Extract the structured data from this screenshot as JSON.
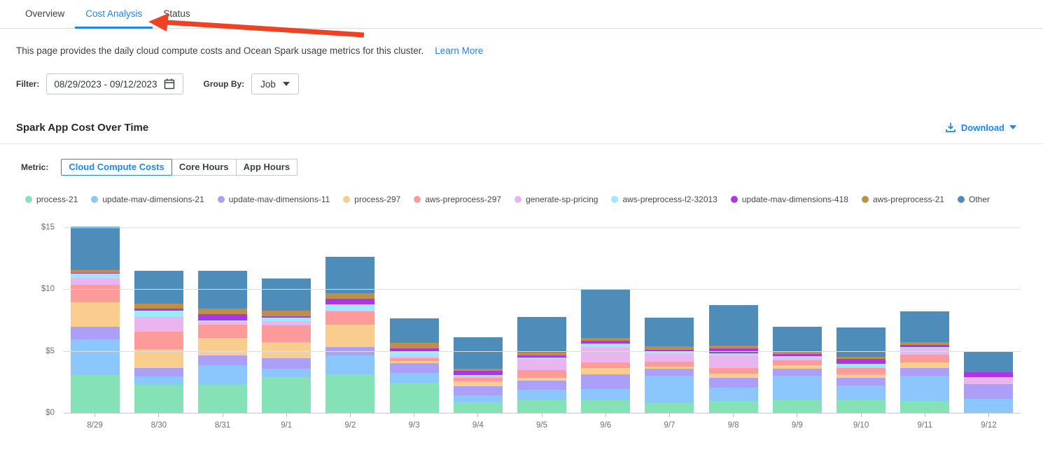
{
  "tabs": {
    "items": [
      {
        "label": "Overview",
        "active": false
      },
      {
        "label": "Cost Analysis",
        "active": true
      },
      {
        "label": "Status",
        "active": false
      }
    ]
  },
  "annotation": {
    "arrow_color": "#ef4123",
    "points_at": "Cost Analysis"
  },
  "description": {
    "text": "This page provides the daily cloud compute costs and Ocean Spark usage metrics for this cluster.",
    "link_label": "Learn More"
  },
  "filters": {
    "filter_label": "Filter:",
    "date_range": "08/29/2023  -  09/12/2023",
    "group_by_label": "Group By:",
    "group_by_value": "Job"
  },
  "section": {
    "title": "Spark App Cost Over Time",
    "download_label": "Download"
  },
  "metric": {
    "label": "Metric:",
    "options": [
      {
        "label": "Cloud Compute Costs",
        "selected": true
      },
      {
        "label": "Core Hours",
        "selected": false
      },
      {
        "label": "App Hours",
        "selected": false
      }
    ]
  },
  "colors": {
    "accent_blue": "#1d87f0",
    "axis_text": "#6b7177",
    "grid_line": "#dcdfe2"
  },
  "chart_data": {
    "type": "bar",
    "stacked": true,
    "title": "Spark App Cost Over Time",
    "xlabel": "",
    "ylabel": "",
    "ylim": [
      0,
      15
    ],
    "grid": true,
    "legend_position": "top",
    "yticks": [
      {
        "label": "$0",
        "value": 0
      },
      {
        "label": "$5",
        "value": 5
      },
      {
        "label": "$10",
        "value": 10
      },
      {
        "label": "$15",
        "value": 15
      }
    ],
    "categories": [
      "8/29",
      "8/30",
      "8/31",
      "9/1",
      "9/2",
      "9/3",
      "9/4",
      "9/5",
      "9/6",
      "9/7",
      "9/8",
      "9/9",
      "9/10",
      "9/11",
      "9/12"
    ],
    "series": [
      {
        "name": "process-21",
        "color": "#85e2b6",
        "values": [
          3.1,
          2.3,
          2.3,
          2.95,
          3.15,
          2.5,
          0.9,
          1.05,
          1.1,
          0.85,
          1.0,
          1.05,
          1.05,
          1.0,
          0
        ]
      },
      {
        "name": "update-mav-dimensions-21",
        "color": "#8bc6fc",
        "values": [
          2.9,
          0.7,
          1.6,
          0.65,
          1.55,
          0.8,
          0.6,
          0.85,
          0.9,
          2.2,
          1.1,
          2.0,
          1.2,
          2.05,
          1.2
        ]
      },
      {
        "name": "update-mav-dimensions-11",
        "color": "#ab9ff7",
        "values": [
          1.0,
          0.7,
          0.8,
          0.9,
          0.7,
          0.75,
          0.7,
          0.75,
          1.2,
          0.55,
          0.8,
          0.6,
          0.65,
          0.65,
          1.2
        ]
      },
      {
        "name": "process-297",
        "color": "#f9cd8d",
        "values": [
          2.0,
          1.5,
          1.4,
          1.3,
          1.8,
          0.2,
          0.4,
          0.25,
          0.5,
          0.2,
          0.35,
          0.25,
          0.3,
          0.45,
          0
        ]
      },
      {
        "name": "aws-preprocess-297",
        "color": "#fd9a9a",
        "values": [
          1.4,
          1.45,
          1.1,
          1.35,
          1.05,
          0.25,
          0.3,
          0.6,
          0.45,
          0.4,
          0.45,
          0.4,
          0.5,
          0.6,
          0
        ]
      },
      {
        "name": "generate-sp-pricing",
        "color": "#eab5ee",
        "values": [
          0.55,
          1.15,
          0.2,
          0.3,
          0.1,
          0.1,
          0.1,
          0.9,
          1.25,
          0.65,
          1.0,
          0.2,
          0.05,
          0.55,
          0.55
        ]
      },
      {
        "name": "aws-preprocess-l2-32013",
        "color": "#9fe7fa",
        "values": [
          0.35,
          0.5,
          0.15,
          0.3,
          0.5,
          0.45,
          0.1,
          0.15,
          0.25,
          0.2,
          0.2,
          0.15,
          0.25,
          0.1,
          0
        ]
      },
      {
        "name": "update-mav-dimensions-418",
        "color": "#ab36e3",
        "values": [
          0.1,
          0.2,
          0.5,
          0.15,
          0.45,
          0.2,
          0.35,
          0.15,
          0.25,
          0.1,
          0.35,
          0.15,
          0.4,
          0.15,
          0.4
        ]
      },
      {
        "name": "aws-preprocess-21",
        "color": "#bc9049",
        "values": [
          0.2,
          0.4,
          0.45,
          0.45,
          0.45,
          0.45,
          0.15,
          0.25,
          0.2,
          0.3,
          0.25,
          0.2,
          0.2,
          0.25,
          0
        ]
      },
      {
        "name": "Other",
        "color": "#4e8cba",
        "values": [
          3.5,
          2.65,
          3.05,
          2.6,
          2.95,
          2.0,
          2.6,
          2.85,
          3.9,
          2.3,
          3.3,
          2.0,
          2.35,
          2.45,
          1.7
        ]
      }
    ]
  }
}
